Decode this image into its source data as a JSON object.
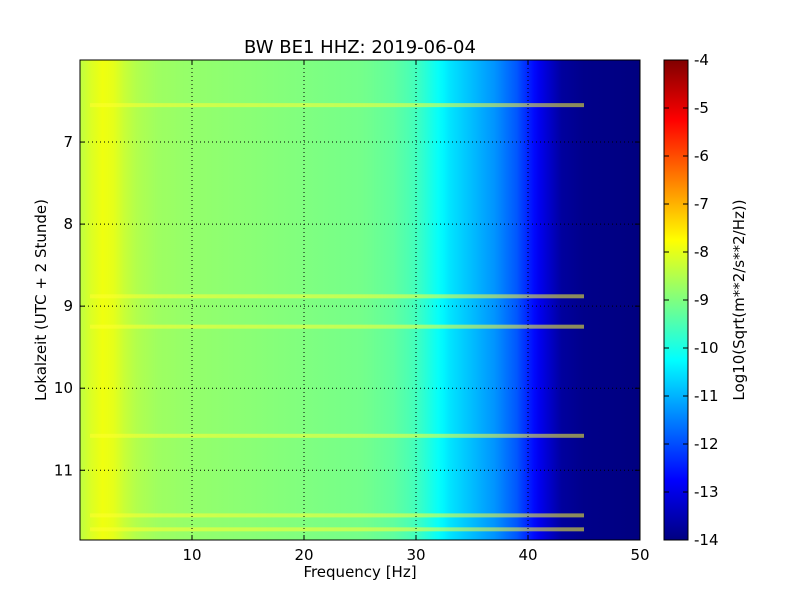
{
  "chart_data": {
    "type": "heatmap",
    "title": "BW BE1 HHZ: 2019-06-04",
    "xlabel": "Frequency [Hz]",
    "ylabel": "Lokalzeit (UTC + 2 Stunde)",
    "xlim": [
      0,
      50
    ],
    "ylim": [
      11.85,
      6.0
    ],
    "x_ticks": [
      "10",
      "20",
      "30",
      "40",
      "50"
    ],
    "x_tick_values": [
      10,
      20,
      30,
      40,
      50
    ],
    "y_ticks": [
      "7",
      "8",
      "9",
      "10",
      "11"
    ],
    "y_tick_values": [
      7,
      8,
      9,
      10,
      11
    ],
    "grid": true,
    "colormap": "jet",
    "colorbar": {
      "label": "Log10(Sqrt(m**2/s**2/Hz))",
      "range": [
        -14,
        -4
      ],
      "ticks": [
        "-4",
        "-5",
        "-6",
        "-7",
        "-8",
        "-9",
        "-10",
        "-11",
        "-12",
        "-13",
        "-14"
      ],
      "tick_values": [
        -4,
        -5,
        -6,
        -7,
        -8,
        -9,
        -10,
        -11,
        -12,
        -13,
        -14
      ]
    },
    "frequency_profile": {
      "x": [
        0,
        1,
        2,
        3,
        4,
        5,
        7,
        10,
        15,
        20,
        25,
        28,
        30,
        31,
        32,
        33,
        35,
        37,
        39,
        40,
        41,
        42,
        43,
        45,
        50
      ],
      "z": [
        -8.4,
        -8.1,
        -7.9,
        -8.0,
        -8.3,
        -8.5,
        -8.7,
        -8.8,
        -8.9,
        -9.0,
        -9.1,
        -9.3,
        -9.6,
        -9.9,
        -10.2,
        -10.5,
        -10.9,
        -11.3,
        -11.9,
        -12.4,
        -12.9,
        -13.3,
        -13.7,
        -13.9,
        -14.0
      ]
    },
    "bright_bands_local_time": [
      6.55,
      8.88,
      9.25,
      10.58,
      11.55,
      11.72
    ]
  }
}
